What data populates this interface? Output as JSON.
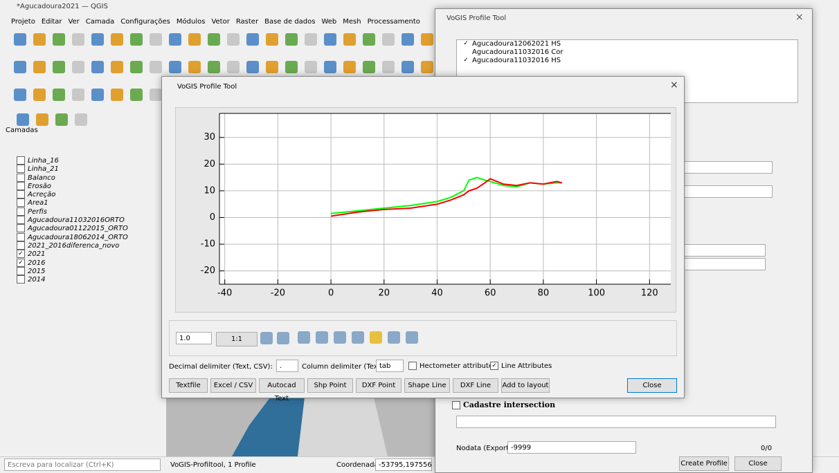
{
  "window": {
    "title": "*Agucadoura2021 — QGIS",
    "menu": [
      "Projeto",
      "Editar",
      "Ver",
      "Camada",
      "Configurações",
      "Módulos",
      "Vetor",
      "Raster",
      "Base de dados",
      "Web",
      "Mesh",
      "Processamento"
    ]
  },
  "layers_panel": {
    "title": "Camadas",
    "layers": [
      {
        "name": "Linha_16",
        "checked": false
      },
      {
        "name": "Linha_21",
        "checked": false
      },
      {
        "name": "Balanco",
        "checked": false
      },
      {
        "name": "Erosão",
        "checked": false
      },
      {
        "name": "Acreção",
        "checked": false
      },
      {
        "name": "Area1",
        "checked": false
      },
      {
        "name": "Perfis",
        "checked": false
      },
      {
        "name": "Agucadoura11032016ORTO",
        "checked": false
      },
      {
        "name": "Agucadoura01122015_ORTO",
        "checked": false
      },
      {
        "name": "Agucadoura18062014_ORTO",
        "checked": false
      },
      {
        "name": "2021_2016diferenca_novo",
        "checked": false
      },
      {
        "name": "2021",
        "checked": true
      },
      {
        "name": "2016",
        "checked": true
      },
      {
        "name": "2015",
        "checked": false
      },
      {
        "name": "2014",
        "checked": false
      }
    ]
  },
  "back_dialog": {
    "title": "VoGIS Profile Tool",
    "rasters": [
      {
        "name": "Agucadoura12062021 HS",
        "checked": true
      },
      {
        "name": "Agucadoura11032016 Cor",
        "checked": false
      },
      {
        "name": "Agucadoura11032016 HS",
        "checked": true
      }
    ],
    "cadastre": "Cadastre intersection",
    "nodata_label": "Nodata (Export)",
    "nodata": "-9999",
    "count": "0/0",
    "create": "Create Profile",
    "close": "Close"
  },
  "dialog": {
    "title": "VoGIS Profile Tool",
    "scale": "1.0",
    "ratio": "1:1",
    "decimal_label": "Decimal delimiter (Text, CSV):",
    "decimal": ".",
    "column_label": "Column delimiter (Text):",
    "column": "tab",
    "hectometer": "Hectometer attributes",
    "hectometer_checked": false,
    "line_attributes": "Line Attributes",
    "line_attributes_checked": true,
    "buttons": [
      "Textfile",
      "Excel / CSV",
      "Autocad Text",
      "Shp Point",
      "DXF Point",
      "Shape Line",
      "DXF Line",
      "Add to layout"
    ],
    "close": "Close"
  },
  "status": {
    "search": "Escreva para localizar (Ctrl+K)",
    "message": "VoGIS-Profiltool, 1 Profile",
    "coord_label": "Coordenada",
    "coord": "-53795,197556"
  },
  "chart_data": {
    "type": "line",
    "x": [
      0,
      10,
      20,
      30,
      40,
      45,
      50,
      52,
      55,
      58,
      60,
      65,
      70,
      75,
      80,
      85,
      87
    ],
    "series": [
      {
        "color": "#00ff00",
        "values": [
          1.5,
          2.5,
          3.5,
          4.5,
          6,
          7.5,
          10,
          14,
          15,
          14,
          13.5,
          12,
          11.5,
          13,
          12.5,
          13,
          13
        ]
      },
      {
        "color": "#ff0000",
        "values": [
          0.5,
          2,
          3,
          3.5,
          5,
          6.5,
          8.5,
          10,
          11,
          13,
          14.5,
          12.5,
          12,
          13,
          12.5,
          13.5,
          13
        ]
      }
    ],
    "xlim": [
      -42,
      128
    ],
    "ylim": [
      -25,
      39
    ],
    "xticks": [
      -40,
      -20,
      0,
      20,
      40,
      60,
      80,
      100,
      120
    ],
    "yticks": [
      -20,
      -10,
      0,
      10,
      20,
      30
    ],
    "grid": true
  }
}
